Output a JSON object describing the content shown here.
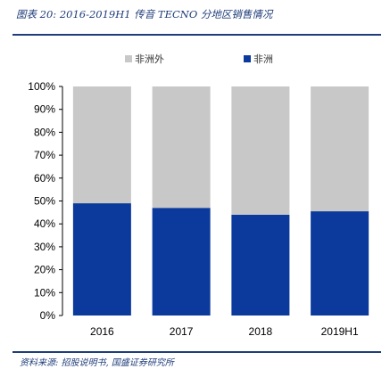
{
  "header": {
    "title": "图表 20:  2016-2019H1 传音 TECNO 分地区销售情况"
  },
  "footer": {
    "source": "资料来源:  招股说明书,  国盛证券研究所"
  },
  "colors": {
    "africa": "#0b3a9c",
    "non_africa": "#c8c8c8",
    "rule": "#1f3d7a"
  },
  "chart_data": {
    "type": "bar",
    "stacked": true,
    "categories": [
      "2016",
      "2017",
      "2018",
      "2019H1"
    ],
    "series": [
      {
        "name": "非洲",
        "values": [
          49,
          47,
          44,
          45.5
        ]
      },
      {
        "name": "非洲外",
        "values": [
          51,
          53,
          56,
          54.5
        ]
      }
    ],
    "ylim": [
      0,
      100
    ],
    "yticks": [
      "0%",
      "10%",
      "20%",
      "30%",
      "40%",
      "50%",
      "60%",
      "70%",
      "80%",
      "90%",
      "100%"
    ],
    "legend_position": "top",
    "grid": false
  }
}
